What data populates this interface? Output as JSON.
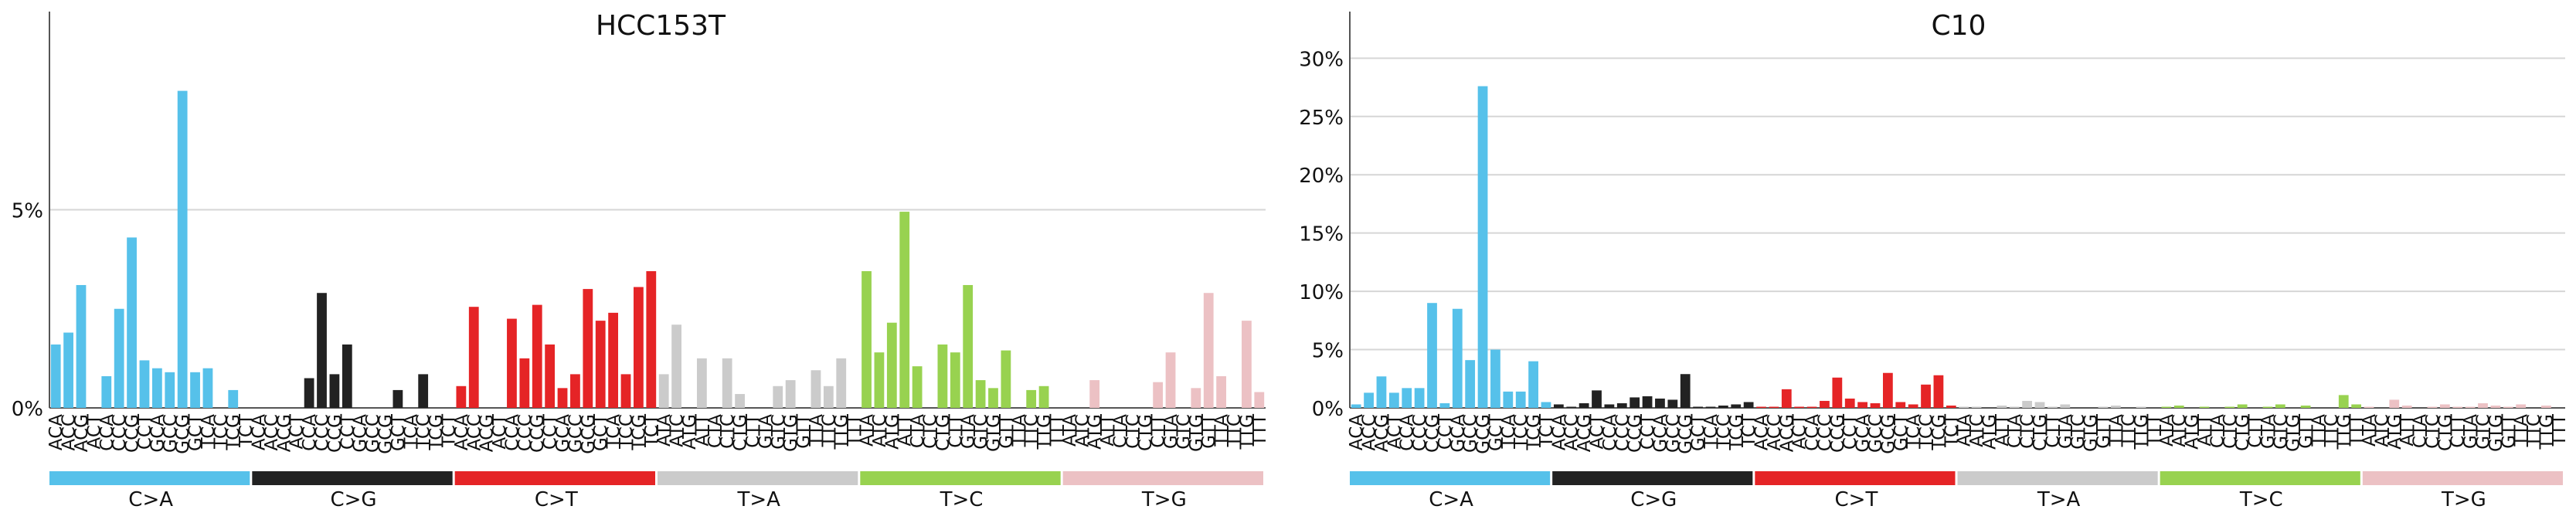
{
  "chart_data": [
    {
      "type": "bar",
      "title": "HCC153T",
      "xlabel": "",
      "ylabel": "",
      "ylim": [
        0,
        10
      ],
      "ytick_values": [
        0,
        5
      ],
      "ytick_labels": [
        "0%",
        "5%"
      ],
      "grid": true,
      "substitution_groups": [
        "C>A",
        "C>G",
        "C>T",
        "T>A",
        "T>C",
        "T>G"
      ],
      "group_colors": [
        "#56c1ea",
        "#222222",
        "#e52426",
        "#cbcbcb",
        "#98d250",
        "#ecc1c4"
      ],
      "contexts": [
        "ACA",
        "ACC",
        "ACG",
        "ACT",
        "CCA",
        "CCC",
        "CCG",
        "CCT",
        "GCA",
        "GCC",
        "GCG",
        "GCT",
        "TCA",
        "TCC",
        "TCG",
        "TCT"
      ],
      "categories": [
        "ACA",
        "ACC",
        "ACG",
        "ACT",
        "CCA",
        "CCC",
        "CCG",
        "CCT",
        "GCA",
        "GCC",
        "GCG",
        "GCT",
        "TCA",
        "TCC",
        "TCG",
        "TCT",
        "ACA",
        "ACC",
        "ACG",
        "ACT",
        "CCA",
        "CCC",
        "CCG",
        "CCT",
        "GCA",
        "GCC",
        "GCG",
        "GCT",
        "TCA",
        "TCC",
        "TCG",
        "TCT",
        "ACA",
        "ACC",
        "ACG",
        "ACT",
        "CCA",
        "CCC",
        "CCG",
        "CCT",
        "GCA",
        "GCC",
        "GCG",
        "GCT",
        "TCA",
        "TCC",
        "TCG",
        "TCT",
        "ATA",
        "ATC",
        "ATG",
        "ATT",
        "CTA",
        "CTC",
        "CTG",
        "CTT",
        "GTA",
        "GTC",
        "GTG",
        "GTT",
        "TTA",
        "TTC",
        "TTG",
        "TTT",
        "ATA",
        "ATC",
        "ATG",
        "ATT",
        "CTA",
        "CTC",
        "CTG",
        "CTT",
        "GTA",
        "GTC",
        "GTG",
        "GTT",
        "TTA",
        "TTC",
        "TTG",
        "TTT",
        "ATA",
        "ATC",
        "ATG",
        "ATT",
        "CTA",
        "CTC",
        "CTG",
        "CTT",
        "GTA",
        "GTC",
        "GTG",
        "GTT",
        "TTA",
        "TTC",
        "TTG",
        "TTT"
      ],
      "values": [
        1.6,
        1.9,
        3.1,
        0,
        0.8,
        2.5,
        4.3,
        1.2,
        1.0,
        0.9,
        8.0,
        0.9,
        1.0,
        0,
        0.45,
        0,
        0,
        0,
        0,
        0,
        0.75,
        2.9,
        0.85,
        1.6,
        0,
        0,
        0,
        0.45,
        0,
        0.85,
        0,
        0,
        0.55,
        2.55,
        0,
        0,
        2.25,
        1.25,
        2.6,
        1.6,
        0.5,
        0.85,
        3.0,
        2.2,
        2.4,
        0.85,
        3.05,
        3.45,
        0.85,
        2.1,
        0,
        1.25,
        0,
        1.25,
        0.35,
        0,
        0,
        0.55,
        0.7,
        0,
        0.95,
        0.55,
        1.25,
        0,
        3.45,
        1.4,
        2.15,
        4.95,
        1.05,
        0,
        1.6,
        1.4,
        3.1,
        0.7,
        0.5,
        1.45,
        0,
        0.45,
        0.55,
        0,
        0,
        0,
        0.7,
        0,
        0,
        0,
        0,
        0.65,
        1.4,
        0,
        0.5,
        2.9,
        0.8,
        0,
        2.2,
        0.4
      ]
    },
    {
      "type": "bar",
      "title": "C10",
      "xlabel": "",
      "ylabel": "",
      "ylim": [
        0,
        34
      ],
      "ytick_values": [
        0,
        5,
        10,
        15,
        20,
        25,
        30
      ],
      "ytick_labels": [
        "0%",
        "5%",
        "10%",
        "15%",
        "20%",
        "25%",
        "30%"
      ],
      "grid": true,
      "substitution_groups": [
        "C>A",
        "C>G",
        "C>T",
        "T>A",
        "T>C",
        "T>G"
      ],
      "group_colors": [
        "#56c1ea",
        "#222222",
        "#e52426",
        "#cbcbcb",
        "#98d250",
        "#ecc1c4"
      ],
      "contexts": [
        "ACA",
        "ACC",
        "ACG",
        "ACT",
        "CCA",
        "CCC",
        "CCG",
        "CCT",
        "GCA",
        "GCC",
        "GCG",
        "GCT",
        "TCA",
        "TCC",
        "TCG",
        "TCT"
      ],
      "categories": [
        "ACA",
        "ACC",
        "ACG",
        "ACT",
        "CCA",
        "CCC",
        "CCG",
        "CCT",
        "GCA",
        "GCC",
        "GCG",
        "GCT",
        "TCA",
        "TCC",
        "TCG",
        "TCT",
        "ACA",
        "ACC",
        "ACG",
        "ACT",
        "CCA",
        "CCC",
        "CCG",
        "CCT",
        "GCA",
        "GCC",
        "GCG",
        "GCT",
        "TCA",
        "TCC",
        "TCG",
        "TCT",
        "ACA",
        "ACC",
        "ACG",
        "ACT",
        "CCA",
        "CCC",
        "CCG",
        "CCT",
        "GCA",
        "GCC",
        "GCG",
        "GCT",
        "TCA",
        "TCC",
        "TCG",
        "TCT",
        "ATA",
        "ATC",
        "ATG",
        "ATT",
        "CTA",
        "CTC",
        "CTG",
        "CTT",
        "GTA",
        "GTC",
        "GTG",
        "GTT",
        "TTA",
        "TTC",
        "TTG",
        "TTT",
        "ATA",
        "ATC",
        "ATG",
        "ATT",
        "CTA",
        "CTC",
        "CTG",
        "CTT",
        "GTA",
        "GTC",
        "GTG",
        "GTT",
        "TTA",
        "TTC",
        "TTG",
        "TTT",
        "ATA",
        "ATC",
        "ATG",
        "ATT",
        "CTA",
        "CTC",
        "CTG",
        "CTT",
        "GTA",
        "GTC",
        "GTG",
        "GTT",
        "TTA",
        "TTC",
        "TTG",
        "TTT"
      ],
      "values": [
        0.3,
        1.3,
        2.7,
        1.3,
        1.7,
        1.7,
        9.0,
        0.4,
        8.5,
        4.1,
        27.6,
        5.0,
        1.4,
        1.4,
        4.0,
        0.5,
        0.3,
        0.1,
        0.4,
        1.5,
        0.3,
        0.4,
        0.9,
        1.0,
        0.8,
        0.7,
        2.9,
        0.1,
        0.1,
        0.2,
        0.3,
        0.5,
        0.1,
        0.1,
        1.6,
        0.1,
        0.1,
        0.6,
        2.6,
        0.8,
        0.5,
        0.4,
        3.0,
        0.5,
        0.3,
        2.0,
        2.8,
        0.2,
        0.1,
        0.1,
        0,
        0.2,
        0.1,
        0.6,
        0.5,
        0.1,
        0.3,
        0,
        0,
        0.1,
        0.2,
        0,
        0.1,
        0,
        0.1,
        0.2,
        0,
        0.1,
        0,
        0.1,
        0.3,
        0,
        0.1,
        0.3,
        0,
        0.2,
        0,
        0,
        1.1,
        0.3,
        0.1,
        0,
        0.7,
        0.2,
        0,
        0.1,
        0.3,
        0.1,
        0.1,
        0.4,
        0.2,
        0.1,
        0.3,
        0,
        0.2,
        0
      ]
    }
  ]
}
